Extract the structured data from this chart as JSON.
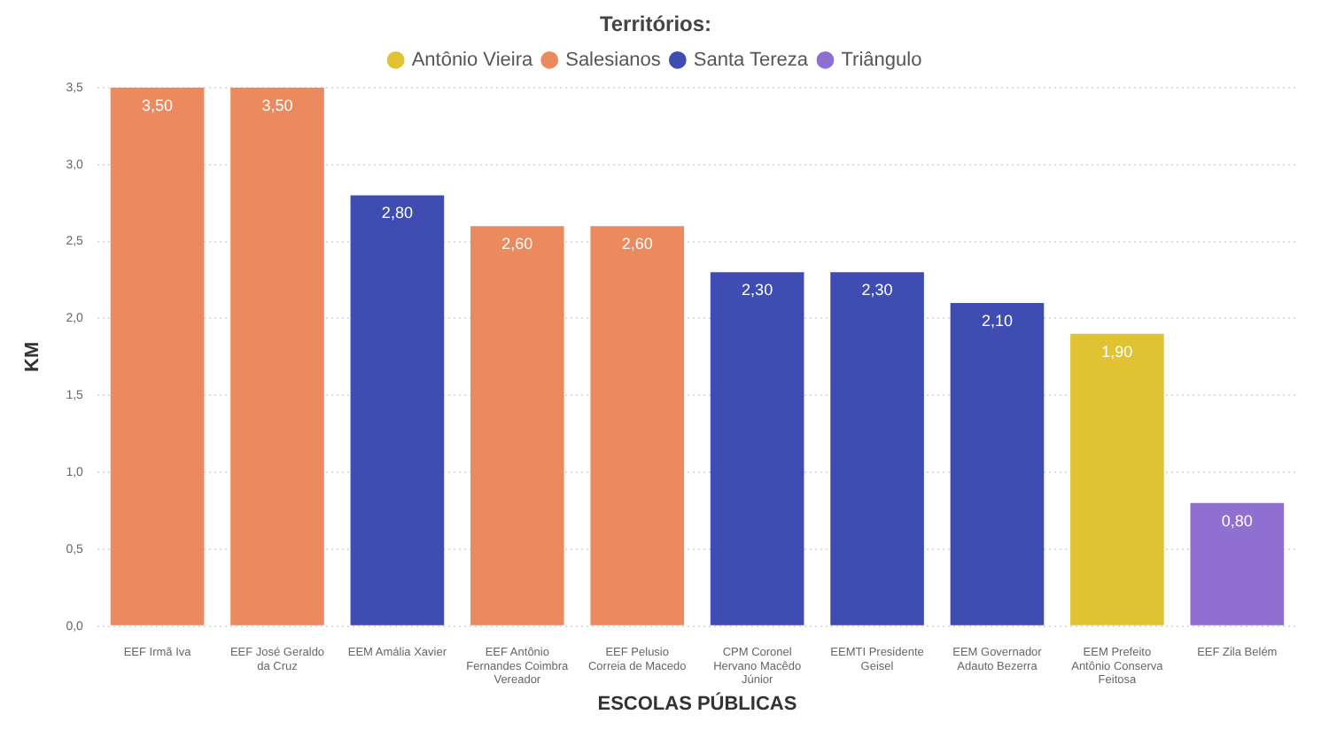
{
  "chart_data": {
    "type": "bar",
    "stacked": true,
    "legend": "top",
    "legend_title": "Territórios:",
    "xlabel": "ESCOLAS PÚBLICAS",
    "ylabel": "KM",
    "categories": [
      "EEF Irmã Iva",
      "EEF José Geraldo da Cruz",
      "EEM Amália Xavier",
      "EEF Antônio Fernandes Coimbra Vereador",
      "EEF Pelusio Correia de Macedo",
      "CPM Coronel Hervano Macêdo Júnior",
      "EEMTI Presidente Geisel",
      "EEM Governador Adauto Bezerra",
      "EEM Prefeito Antônio Conserva Feitosa",
      "EEF Zila Belém"
    ],
    "series": [
      {
        "name": "Antônio Vieira",
        "color": "#e0c232",
        "values": [
          null,
          null,
          null,
          null,
          null,
          null,
          null,
          null,
          1.9,
          null
        ],
        "value_labels": [
          null,
          null,
          null,
          null,
          null,
          null,
          null,
          null,
          "1,90",
          null
        ]
      },
      {
        "name": "Salesianos",
        "color": "#eb8a5e",
        "values": [
          3.5,
          3.5,
          null,
          2.6,
          2.6,
          null,
          null,
          null,
          null,
          null
        ],
        "value_labels": [
          "3,50",
          "3,50",
          null,
          "2,60",
          "2,60",
          null,
          null,
          null,
          null,
          null
        ]
      },
      {
        "name": "Santa Tereza",
        "color": "#3f4db3",
        "values": [
          null,
          null,
          2.8,
          null,
          null,
          2.3,
          2.3,
          2.1,
          null,
          null
        ],
        "value_labels": [
          null,
          null,
          "2,80",
          null,
          null,
          "2,30",
          "2,30",
          "2,10",
          null,
          null
        ]
      },
      {
        "name": "Triângulo",
        "color": "#8f6fd0",
        "values": [
          null,
          null,
          null,
          null,
          null,
          null,
          null,
          null,
          null,
          0.8
        ],
        "value_labels": [
          null,
          null,
          null,
          null,
          null,
          null,
          null,
          null,
          null,
          "0,80"
        ]
      }
    ],
    "ylim": [
      0,
      3.5
    ],
    "yticks": [
      {
        "value": 0,
        "label": "0,0"
      },
      {
        "value": 0.5,
        "label": "0,5"
      },
      {
        "value": 1,
        "label": "1,0"
      },
      {
        "value": 1.5,
        "label": "1,5"
      },
      {
        "value": 2,
        "label": "2,0"
      },
      {
        "value": 2.5,
        "label": "2,5"
      },
      {
        "value": 3,
        "label": "3,0"
      },
      {
        "value": 3.5,
        "label": "3,5"
      }
    ],
    "grid": "y"
  }
}
